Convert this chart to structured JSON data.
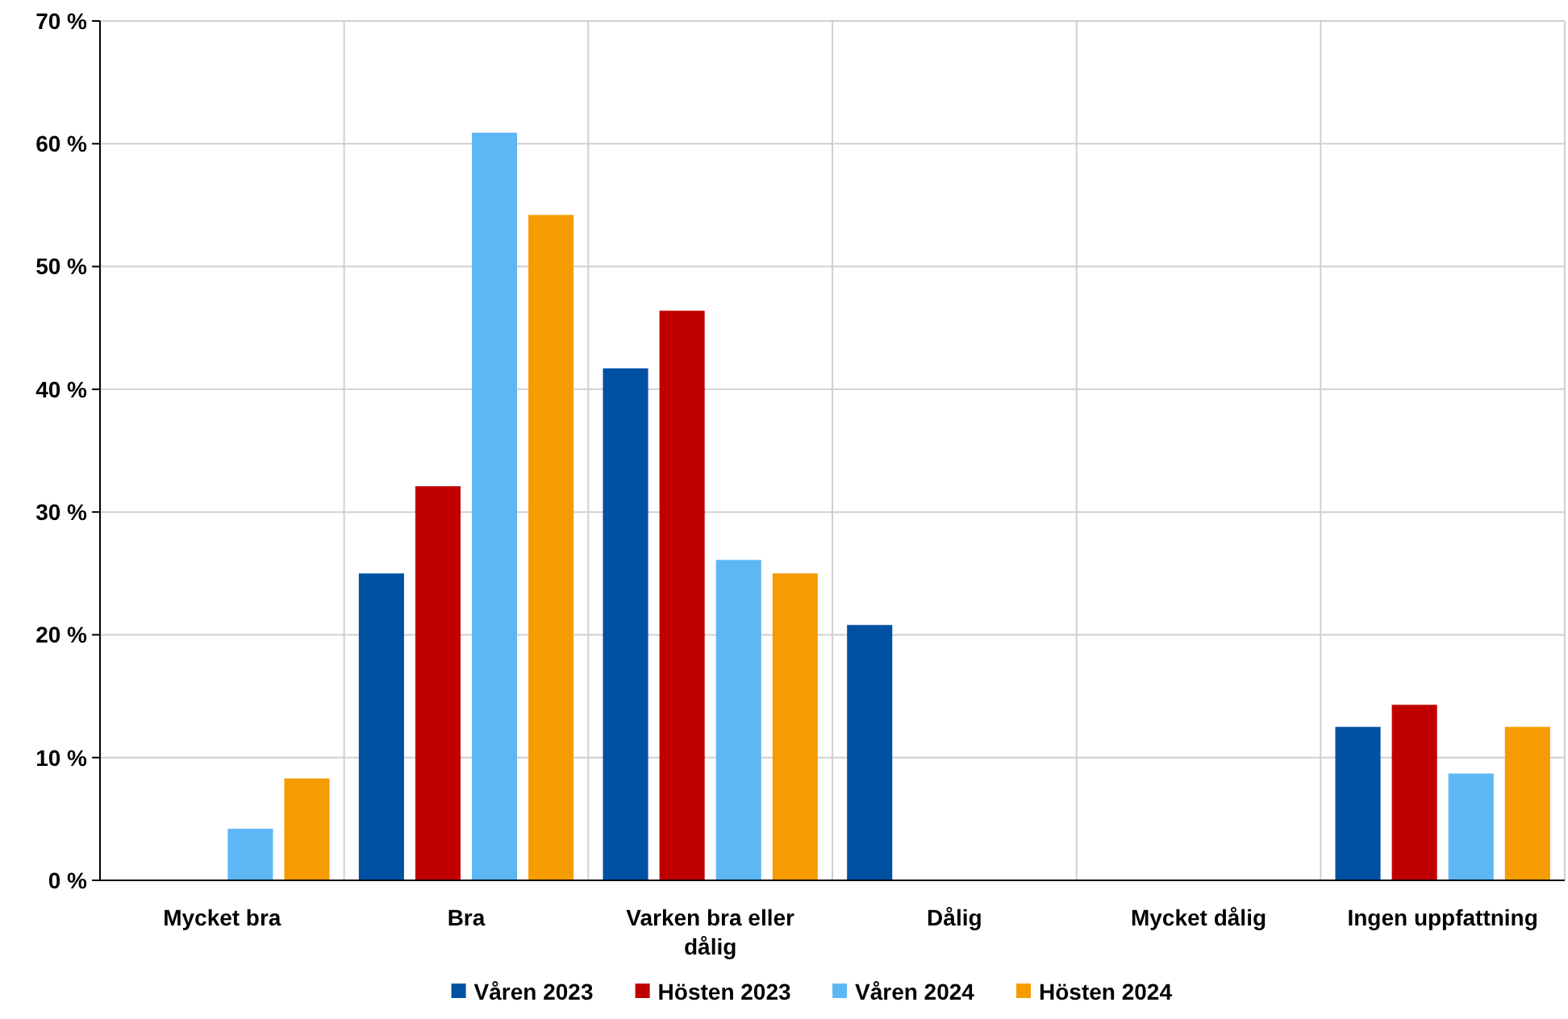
{
  "chart_data": {
    "type": "bar",
    "categories": [
      "Mycket bra",
      "Bra",
      "Varken bra eller dålig",
      "Dålig",
      "Mycket dålig",
      "Ingen uppfattning"
    ],
    "series": [
      {
        "name": "Våren 2023",
        "color": "#0051a2",
        "values": [
          0,
          25.0,
          41.7,
          20.8,
          0,
          12.5
        ]
      },
      {
        "name": "Hösten 2023",
        "color": "#c00000",
        "values": [
          0,
          32.1,
          46.4,
          0,
          0,
          14.3
        ]
      },
      {
        "name": "Våren 2024",
        "color": "#5eb7f5",
        "values": [
          4.2,
          60.9,
          26.1,
          0,
          0,
          8.7
        ]
      },
      {
        "name": "Hösten 2024",
        "color": "#f59c00",
        "values": [
          8.3,
          54.2,
          25.0,
          0,
          0,
          12.5
        ]
      }
    ],
    "ylim": [
      0,
      70
    ],
    "yticks": [
      {
        "value": 0,
        "label": "0 %"
      },
      {
        "value": 10,
        "label": "10 %"
      },
      {
        "value": 20,
        "label": "20 %"
      },
      {
        "value": 30,
        "label": "30 %"
      },
      {
        "value": 40,
        "label": "40 %"
      },
      {
        "value": 50,
        "label": "50 %"
      },
      {
        "value": 60,
        "label": "60 %"
      },
      {
        "value": 70,
        "label": "70 %"
      }
    ],
    "grid": true,
    "legend": "bottom"
  }
}
